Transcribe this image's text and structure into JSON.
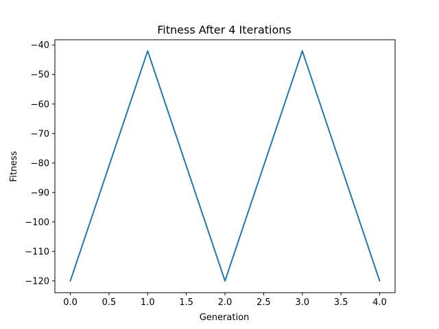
{
  "chart_data": {
    "type": "line",
    "title": "Fitness After 4 Iterations",
    "xlabel": "Generation",
    "ylabel": "Fitness",
    "x": [
      0,
      1,
      2,
      3,
      4
    ],
    "series": [
      {
        "values": [
          -120,
          -42,
          -120,
          -42,
          -120
        ],
        "color": "#1f77b4"
      }
    ],
    "xlim": [
      -0.2,
      4.2
    ],
    "ylim": [
      -124,
      -38.2
    ],
    "xticks": [
      0.0,
      0.5,
      1.0,
      1.5,
      2.0,
      2.5,
      3.0,
      3.5,
      4.0
    ],
    "xtick_labels": [
      "0.0",
      "0.5",
      "1.0",
      "1.5",
      "2.0",
      "2.5",
      "3.0",
      "3.5",
      "4.0"
    ],
    "yticks": [
      -120,
      -110,
      -100,
      -90,
      -80,
      -70,
      -60,
      -50,
      -40
    ],
    "ytick_labels": [
      "−120",
      "−110",
      "−100",
      "−90",
      "−80",
      "−70",
      "−60",
      "−50",
      "−40"
    ],
    "grid": false,
    "legend": "none"
  }
}
